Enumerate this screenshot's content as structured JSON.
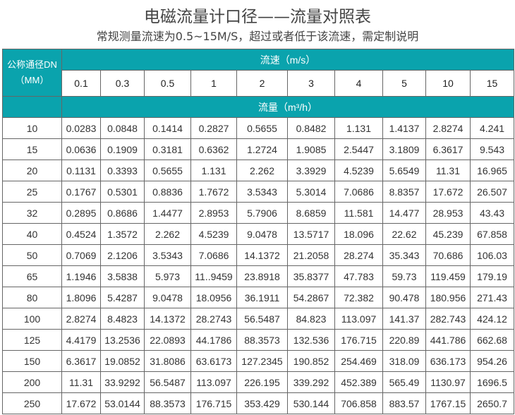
{
  "title": "电磁流量计口径——流量对照表",
  "subtitle": "常规测量流速为0.5~15M/S，超过或者低于该流速，需定制说明",
  "table": {
    "dn_header_line1": "公称通径DN",
    "dn_header_line2": "（MM）",
    "velocity_header": "流速（m/s）",
    "flow_header": "流量（m³/h）",
    "velocities": [
      "0.1",
      "0.3",
      "0.5",
      "1",
      "2",
      "3",
      "4",
      "5",
      "10",
      "15"
    ],
    "accent_color": "#0aa3ad",
    "rows": [
      {
        "dn": "10",
        "values": [
          "0.0283",
          "0.0848",
          "0.1414",
          "0.2827",
          "0.5655",
          "0.8482",
          "1.131",
          "1.4137",
          "2.8274",
          "4.241"
        ]
      },
      {
        "dn": "15",
        "values": [
          "0.0636",
          "0.1909",
          "0.3181",
          "0.6362",
          "1.2724",
          "1.9085",
          "2.5447",
          "3.1809",
          "6.3617",
          "9.543"
        ]
      },
      {
        "dn": "20",
        "values": [
          "0.1131",
          "0.3393",
          "0.5655",
          "1.131",
          "2.262",
          "3.3929",
          "4.5239",
          "5.6549",
          "11.31",
          "16.965"
        ]
      },
      {
        "dn": "25",
        "values": [
          "0.1767",
          "0.5301",
          "0.8836",
          "1.7672",
          "3.5343",
          "5.3014",
          "7.0686",
          "8.8357",
          "17.672",
          "26.507"
        ]
      },
      {
        "dn": "32",
        "values": [
          "0.2895",
          "0.8686",
          "1.4477",
          "2.8953",
          "5.7906",
          "8.6859",
          "11.581",
          "14.477",
          "28.953",
          "43.43"
        ]
      },
      {
        "dn": "40",
        "values": [
          "0.4524",
          "1.3572",
          "2.262",
          "4.5239",
          "9.0478",
          "13.5717",
          "18.096",
          "22.62",
          "45.239",
          "67.858"
        ]
      },
      {
        "dn": "50",
        "values": [
          "0.7069",
          "2.1206",
          "3.5343",
          "7.0686",
          "14.1372",
          "21.2058",
          "28.274",
          "35.343",
          "70.686",
          "106.03"
        ]
      },
      {
        "dn": "65",
        "values": [
          "1.1946",
          "3.5838",
          "5.973",
          "11..9459",
          "23.8918",
          "35.8377",
          "47.783",
          "59.73",
          "119.459",
          "179.19"
        ]
      },
      {
        "dn": "80",
        "values": [
          "1.8096",
          "5.4287",
          "9.0478",
          "18.0956",
          "36.1911",
          "54.2867",
          "72.382",
          "90.478",
          "180.956",
          "271.43"
        ]
      },
      {
        "dn": "100",
        "values": [
          "2.8274",
          "8.4823",
          "14.1372",
          "28.2743",
          "56.5487",
          "84.823",
          "113.097",
          "141.37",
          "282.743",
          "424.12"
        ]
      },
      {
        "dn": "125",
        "values": [
          "4.4179",
          "13.2536",
          "22.0893",
          "44.1786",
          "88.3573",
          "132.536",
          "176.715",
          "220.89",
          "441.786",
          "662.68"
        ]
      },
      {
        "dn": "150",
        "values": [
          "6.3617",
          "19.0852",
          "31.8086",
          "63.6173",
          "127.2345",
          "190.852",
          "254.469",
          "318.09",
          "636.173",
          "954.26"
        ]
      },
      {
        "dn": "200",
        "values": [
          "11.31",
          "33.9292",
          "56.5487",
          "113.097",
          "226.195",
          "339.292",
          "452.389",
          "565.49",
          "1130.97",
          "1696.5"
        ]
      },
      {
        "dn": "250",
        "values": [
          "17.672",
          "53.0144",
          "88.3573",
          "176.715",
          "353.429",
          "530.144",
          "706.858",
          "883.57",
          "1767.15",
          "2650.7"
        ]
      }
    ]
  }
}
